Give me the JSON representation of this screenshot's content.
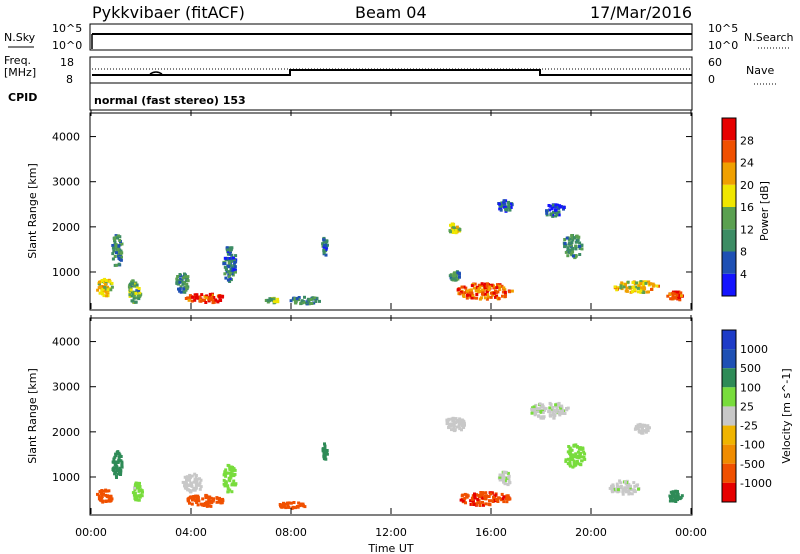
{
  "header": {
    "station": "Pykkvibaer (fitACF)",
    "beam": "Beam 04",
    "date": "17/Mar/2016"
  },
  "noise_panel": {
    "left_label": "N.Sky",
    "right_label": "N.Search",
    "left_ticks": [
      "10^5",
      "10^0"
    ],
    "right_ticks": [
      "10^5",
      "10^0"
    ]
  },
  "freq_panel": {
    "left_label_line1": "Freq.",
    "left_label_line2": "[MHz]",
    "left_ticks": [
      "18",
      "8"
    ],
    "right_label": "Nave",
    "right_ticks": [
      "60",
      "0"
    ]
  },
  "cpid": {
    "label": "CPID",
    "value": "normal (fast stereo) 153"
  },
  "colors": {
    "power_scale": [
      "#1414ff",
      "#1e50b4",
      "#3c8c64",
      "#5aa050",
      "#f0e600",
      "#f0a000",
      "#f05000",
      "#e60000"
    ],
    "velocity_scale": [
      "#e60000",
      "#f05000",
      "#f08c00",
      "#f0b400",
      "#c8c8c8",
      "#78dc3c",
      "#2e8b57",
      "#1e50b4",
      "#1e3cc8"
    ]
  },
  "chart_data": [
    {
      "type": "heatmap",
      "title": "",
      "xlabel": "",
      "ylabel": "Slant Range [km]",
      "x_ticks": [
        "00:00",
        "04:00",
        "08:00",
        "12:00",
        "16:00",
        "20:00",
        "00:00"
      ],
      "y_ticks": [
        "1000",
        "2000",
        "3000",
        "4000"
      ],
      "ylim": [
        180,
        4500
      ],
      "colorbar": {
        "label": "Power [dB]",
        "ticks": [
          "4",
          "8",
          "12",
          "16",
          "20",
          "24",
          "28"
        ],
        "range": [
          0,
          30
        ]
      },
      "blobs": [
        {
          "t": 0.5,
          "r": 700,
          "dt": 0.6,
          "dr": 400,
          "v": 18
        },
        {
          "t": 1.0,
          "r": 1500,
          "dt": 0.4,
          "dr": 700,
          "v": 10
        },
        {
          "t": 1.7,
          "r": 600,
          "dt": 0.5,
          "dr": 500,
          "v": 12
        },
        {
          "t": 4.5,
          "r": 450,
          "dt": 1.5,
          "dr": 200,
          "v": 26
        },
        {
          "t": 3.6,
          "r": 800,
          "dt": 0.5,
          "dr": 450,
          "v": 10
        },
        {
          "t": 5.5,
          "r": 1200,
          "dt": 0.5,
          "dr": 800,
          "v": 8
        },
        {
          "t": 7.2,
          "r": 400,
          "dt": 0.5,
          "dr": 100,
          "v": 14
        },
        {
          "t": 8.5,
          "r": 400,
          "dt": 1.2,
          "dr": 150,
          "v": 10
        },
        {
          "t": 9.3,
          "r": 1600,
          "dt": 0.2,
          "dr": 400,
          "v": 8
        },
        {
          "t": 14.5,
          "r": 2000,
          "dt": 0.5,
          "dr": 200,
          "v": 16
        },
        {
          "t": 14.5,
          "r": 950,
          "dt": 0.4,
          "dr": 200,
          "v": 10
        },
        {
          "t": 15.7,
          "r": 600,
          "dt": 2.2,
          "dr": 350,
          "v": 24
        },
        {
          "t": 16.5,
          "r": 2500,
          "dt": 0.6,
          "dr": 250,
          "v": 6
        },
        {
          "t": 18.5,
          "r": 2400,
          "dt": 0.8,
          "dr": 300,
          "v": 5
        },
        {
          "t": 19.2,
          "r": 1600,
          "dt": 0.8,
          "dr": 500,
          "v": 10
        },
        {
          "t": 21.8,
          "r": 700,
          "dt": 1.8,
          "dr": 250,
          "v": 18
        },
        {
          "t": 23.3,
          "r": 500,
          "dt": 0.6,
          "dr": 200,
          "v": 26
        }
      ]
    },
    {
      "type": "heatmap",
      "title": "",
      "xlabel": "Time UT",
      "ylabel": "Slant Range [km]",
      "x_ticks": [
        "00:00",
        "04:00",
        "08:00",
        "12:00",
        "16:00",
        "20:00",
        "00:00"
      ],
      "y_ticks": [
        "1000",
        "2000",
        "3000",
        "4000"
      ],
      "ylim": [
        180,
        4500
      ],
      "colorbar": {
        "label": "Velocity [m s^-1]",
        "ticks": [
          "1000",
          "500",
          "100",
          "25",
          "-25",
          "-100",
          "-500",
          "-1000"
        ]
      },
      "blobs": [
        {
          "t": 0.5,
          "r": 600,
          "dt": 0.6,
          "dr": 300,
          "v": -300
        },
        {
          "t": 1.0,
          "r": 1300,
          "dt": 0.4,
          "dr": 600,
          "v": 200
        },
        {
          "t": 1.8,
          "r": 700,
          "dt": 0.4,
          "dr": 400,
          "v": 50
        },
        {
          "t": 4.5,
          "r": 500,
          "dt": 1.5,
          "dr": 250,
          "v": -300
        },
        {
          "t": 4.0,
          "r": 900,
          "dt": 0.8,
          "dr": 400,
          "v": 10
        },
        {
          "t": 5.5,
          "r": 1000,
          "dt": 0.5,
          "dr": 600,
          "v": 60
        },
        {
          "t": 8.0,
          "r": 400,
          "dt": 1.0,
          "dr": 150,
          "v": -300
        },
        {
          "t": 9.3,
          "r": 1600,
          "dt": 0.2,
          "dr": 350,
          "v": 200
        },
        {
          "t": 14.5,
          "r": 2200,
          "dt": 0.8,
          "dr": 300,
          "v": 10
        },
        {
          "t": 15.7,
          "r": 550,
          "dt": 2.0,
          "dr": 300,
          "v": -400
        },
        {
          "t": 16.5,
          "r": 1000,
          "dt": 0.5,
          "dr": 300,
          "v": 15
        },
        {
          "t": 18.3,
          "r": 2500,
          "dt": 1.5,
          "dr": 350,
          "v": 15
        },
        {
          "t": 19.3,
          "r": 1500,
          "dt": 0.8,
          "dr": 500,
          "v": 60
        },
        {
          "t": 21.3,
          "r": 800,
          "dt": 1.2,
          "dr": 300,
          "v": 15
        },
        {
          "t": 23.3,
          "r": 600,
          "dt": 0.6,
          "dr": 250,
          "v": 200
        },
        {
          "t": 22.0,
          "r": 2100,
          "dt": 0.6,
          "dr": 200,
          "v": 10
        }
      ]
    }
  ]
}
